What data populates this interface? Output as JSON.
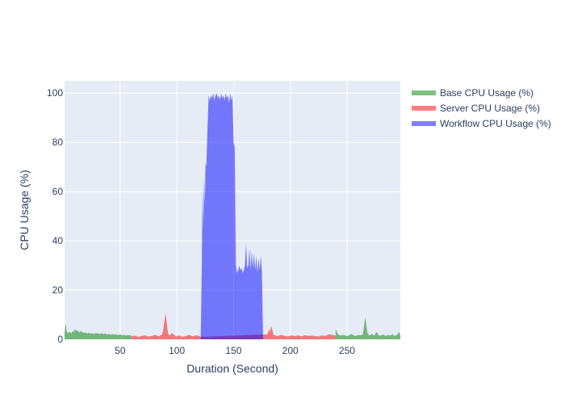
{
  "chart_data": {
    "type": "area",
    "title": "",
    "xlabel": "Duration (Second)",
    "ylabel": "CPU Usage (%)",
    "xlim": [
      1,
      297
    ],
    "ylim": [
      0,
      105
    ],
    "xticks": [
      50,
      100,
      150,
      200,
      250
    ],
    "yticks": [
      0,
      20,
      40,
      60,
      80,
      100
    ],
    "grid": true,
    "legend_position": "top-right",
    "colors": {
      "plot_background": "#e5ecf6",
      "gridline": "#ffffff",
      "text": "#2a3f5f"
    },
    "series": [
      {
        "name": "Base CPU Usage (%)",
        "color": "#008000",
        "opacity": 0.5,
        "x": [
          1,
          2,
          3,
          4,
          5,
          6,
          7,
          8,
          9,
          10,
          11,
          12,
          13,
          14,
          15,
          16,
          17,
          18,
          19,
          20,
          21,
          22,
          23,
          24,
          25,
          26,
          27,
          28,
          29,
          30,
          31,
          32,
          33,
          34,
          35,
          36,
          37,
          38,
          39,
          40,
          41,
          42,
          43,
          44,
          45,
          46,
          47,
          48,
          49,
          50,
          51,
          52,
          53,
          54,
          55,
          56,
          57,
          58,
          59,
          60
        ],
        "y": [
          2.5,
          6.5,
          3.0,
          2.5,
          3.2,
          2.8,
          2.4,
          3.5,
          2.9,
          4.0,
          3.8,
          3.3,
          3.6,
          2.7,
          3.1,
          3.4,
          2.6,
          2.9,
          2.5,
          2.8,
          2.3,
          2.7,
          2.5,
          2.3,
          2.6,
          2.4,
          2.2,
          2.5,
          2.3,
          2.6,
          2.4,
          2.1,
          2.3,
          2.5,
          2.0,
          2.2,
          2.4,
          2.1,
          1.9,
          2.2,
          2.0,
          1.8,
          2.1,
          1.9,
          2.2,
          1.8,
          2.0,
          1.7,
          1.9,
          2.1,
          1.8,
          1.6,
          1.9,
          1.7,
          1.5,
          1.8,
          1.6,
          1.7,
          1.5,
          1.6
        ]
      },
      {
        "name": "Base CPU Usage (%)",
        "color": "#008000",
        "opacity": 0.5,
        "x": [
          240,
          242,
          244,
          246,
          248,
          250,
          252,
          254,
          256,
          258,
          260,
          262,
          264,
          266,
          268,
          270,
          272,
          274,
          276,
          278,
          280,
          282,
          284,
          286,
          288,
          290,
          292,
          294,
          296,
          297
        ],
        "y": [
          4.0,
          2.0,
          1.5,
          1.8,
          1.6,
          1.3,
          1.7,
          2.2,
          1.5,
          1.4,
          1.8,
          1.6,
          2.0,
          9.0,
          2.5,
          1.5,
          2.2,
          1.4,
          3.0,
          1.6,
          1.5,
          2.0,
          1.3,
          1.8,
          1.5,
          2.1,
          1.4,
          1.8,
          3.0,
          1.5
        ]
      },
      {
        "name": "Server CPU Usage (%)",
        "color": "#ff0000",
        "opacity": 0.5,
        "x": [
          60,
          63,
          66,
          69,
          72,
          75,
          78,
          81,
          84,
          87,
          88,
          89,
          90,
          91,
          92,
          93,
          96,
          99,
          102,
          105,
          108,
          111,
          114,
          117,
          120,
          121,
          180,
          181,
          182,
          183,
          184,
          185,
          186,
          189,
          192,
          195,
          198,
          201,
          204,
          207,
          210,
          213,
          216,
          219,
          222,
          225,
          228,
          231,
          234,
          237,
          240
        ],
        "y": [
          1.2,
          1.5,
          1.0,
          1.3,
          1.6,
          1.1,
          1.4,
          1.8,
          1.2,
          2.0,
          4.0,
          7.5,
          10.5,
          7.0,
          3.0,
          1.5,
          2.5,
          1.2,
          1.5,
          1.0,
          1.4,
          1.8,
          1.2,
          1.6,
          1.3,
          1.0,
          2.0,
          4.0,
          3.0,
          5.5,
          4.0,
          2.0,
          1.6,
          1.3,
          1.8,
          1.4,
          1.2,
          1.6,
          1.3,
          1.5,
          1.2,
          1.7,
          1.4,
          1.5,
          1.3,
          1.2,
          1.6,
          1.4,
          2.0,
          1.8,
          1.5
        ]
      },
      {
        "name": "Workflow CPU Usage (%)",
        "color": "#0000ff",
        "opacity": 0.5,
        "x": [
          121,
          122,
          122.6,
          123.3,
          124,
          124.7,
          125.3,
          126,
          127,
          128,
          129,
          130,
          131,
          132,
          133,
          134,
          135,
          136,
          137,
          138,
          139,
          140,
          141,
          142,
          143,
          144,
          145,
          146,
          147,
          148,
          149,
          150,
          151,
          152,
          153,
          154,
          155,
          156,
          157,
          158,
          159,
          160,
          161,
          162,
          163,
          164,
          165,
          166,
          167,
          168,
          169,
          170,
          171,
          172,
          173,
          174,
          175,
          176,
          177,
          178,
          179
        ],
        "y": [
          0,
          30,
          62,
          45,
          66,
          55,
          72,
          70,
          86,
          99,
          97,
          99,
          98,
          100,
          97,
          99,
          100,
          98,
          99,
          97,
          100,
          98,
          99,
          97,
          100,
          98,
          99,
          96,
          100,
          97,
          99,
          80,
          78,
          30,
          27,
          28,
          30,
          28,
          29,
          27,
          28,
          30,
          39,
          29,
          30,
          37,
          28,
          36,
          29,
          35,
          28,
          34,
          27,
          33,
          28,
          34,
          27,
          0,
          0,
          0,
          0
        ]
      }
    ],
    "legend": [
      {
        "label": "Base CPU Usage (%)",
        "color": "#008000"
      },
      {
        "label": "Server CPU Usage (%)",
        "color": "#ff0000"
      },
      {
        "label": "Workflow CPU Usage (%)",
        "color": "#0000ff"
      }
    ]
  }
}
